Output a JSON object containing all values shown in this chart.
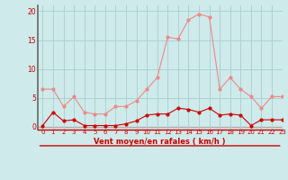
{
  "x": [
    0,
    1,
    2,
    3,
    4,
    5,
    6,
    7,
    8,
    9,
    10,
    11,
    12,
    13,
    14,
    15,
    16,
    17,
    18,
    19,
    20,
    21,
    22,
    23
  ],
  "wind_avg": [
    0.2,
    2.5,
    1.0,
    1.2,
    0.2,
    0.2,
    0.2,
    0.2,
    0.5,
    1.0,
    2.0,
    2.2,
    2.2,
    3.2,
    3.0,
    2.5,
    3.2,
    2.0,
    2.2,
    2.0,
    0.2,
    1.2,
    1.2,
    1.2
  ],
  "wind_gust": [
    6.5,
    6.5,
    3.5,
    5.2,
    2.5,
    2.2,
    2.2,
    3.5,
    3.5,
    4.5,
    6.5,
    8.5,
    15.5,
    15.2,
    18.5,
    19.5,
    19.0,
    6.5,
    8.5,
    6.5,
    5.2,
    3.2,
    5.2,
    5.2
  ],
  "ylabel_values": [
    0,
    5,
    10,
    15,
    20
  ],
  "ylim": [
    -0.5,
    21
  ],
  "xlim": [
    -0.5,
    23
  ],
  "xlabel": "Vent moyen/en rafales ( km/h )",
  "bg_color": "#ceeaea",
  "grid_color": "#aacece",
  "avg_color": "#cc0000",
  "gust_color": "#ee8888",
  "marker_size": 2.0,
  "line_width": 0.8
}
